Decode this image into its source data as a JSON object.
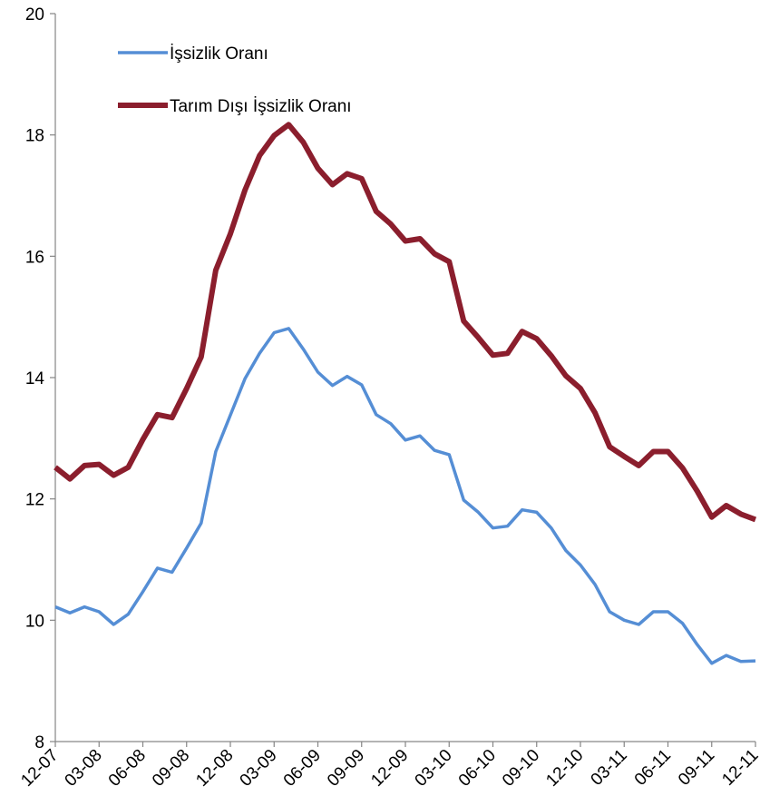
{
  "chart_data": {
    "type": "line",
    "categories": [
      "12-07",
      null,
      null,
      "03-08",
      null,
      null,
      "06-08",
      null,
      null,
      "09-08",
      null,
      null,
      "12-08",
      null,
      null,
      "03-09",
      null,
      null,
      "06-09",
      null,
      null,
      "09-09",
      null,
      null,
      "12-09",
      null,
      null,
      "03-10",
      null,
      null,
      "06-10",
      null,
      null,
      "09-10",
      null,
      null,
      "12-10",
      null,
      null,
      "03-11",
      null,
      null,
      "06-11",
      null,
      null,
      "09-11",
      null,
      null,
      "12-11"
    ],
    "series": [
      {
        "name": "İşsizlik Oranı",
        "color": "#558ed5",
        "values": [
          10.22,
          10.12,
          10.22,
          10.14,
          9.93,
          10.1,
          10.47,
          10.86,
          10.79,
          11.19,
          11.6,
          12.78,
          13.38,
          13.98,
          14.4,
          14.74,
          14.81,
          14.47,
          14.09,
          13.87,
          14.02,
          13.88,
          13.39,
          13.24,
          12.97,
          13.04,
          12.8,
          12.73,
          11.98,
          11.78,
          11.52,
          11.55,
          11.82,
          11.78,
          11.52,
          11.15,
          10.91,
          10.59,
          10.14,
          10.0,
          9.93,
          10.14,
          10.14,
          9.95,
          9.6,
          9.29,
          9.42,
          9.32,
          9.33
        ]
      },
      {
        "name": "Tarım Dışı İşsizlik Oranı",
        "color": "#8b1e2d",
        "values": [
          12.52,
          12.33,
          12.55,
          12.57,
          12.39,
          12.52,
          12.98,
          13.39,
          13.34,
          13.82,
          14.34,
          15.77,
          16.37,
          17.09,
          17.66,
          17.99,
          18.17,
          17.88,
          17.45,
          17.18,
          17.36,
          17.28,
          16.74,
          16.53,
          16.25,
          16.29,
          16.04,
          15.91,
          14.93,
          14.66,
          14.37,
          14.4,
          14.76,
          14.64,
          14.36,
          14.03,
          13.82,
          13.42,
          12.86,
          12.7,
          12.55,
          12.78,
          12.78,
          12.51,
          12.13,
          11.7,
          11.89,
          11.75,
          11.66
        ]
      }
    ],
    "ylim": [
      8,
      20
    ],
    "yticks": [
      8,
      10,
      12,
      14,
      16,
      18,
      20
    ],
    "legend": "top-left"
  }
}
